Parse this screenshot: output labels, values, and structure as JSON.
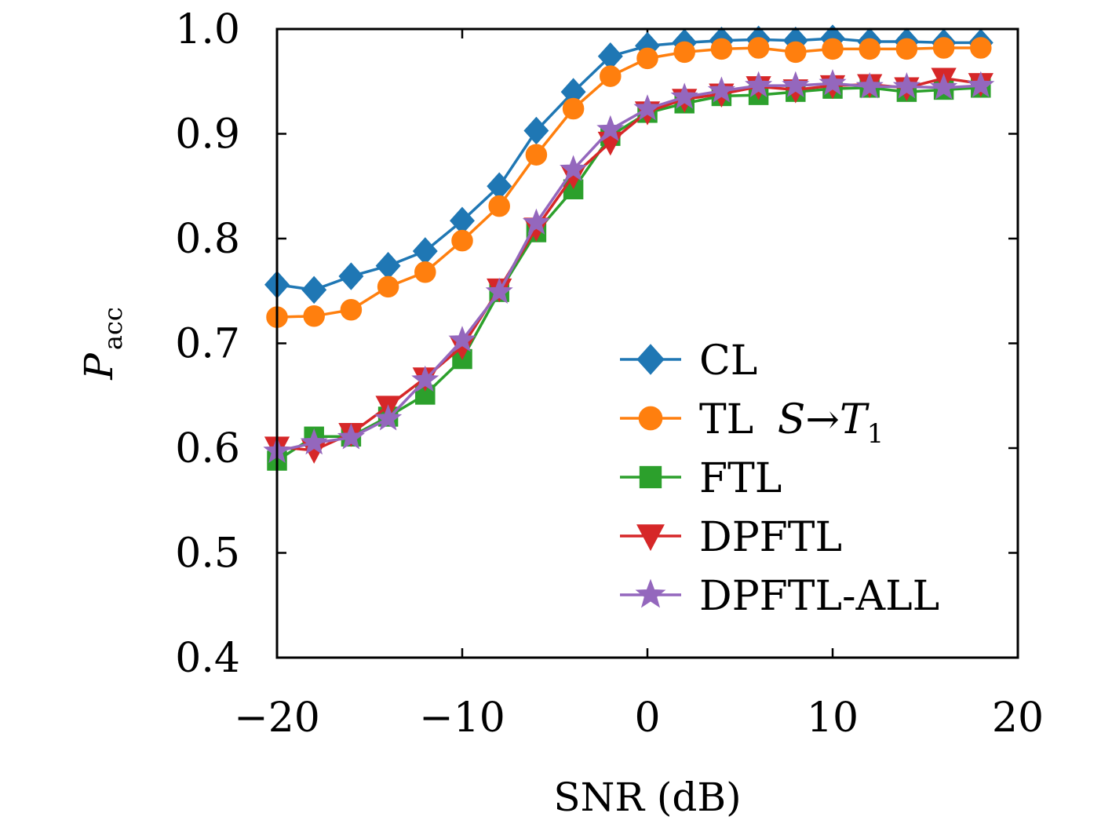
{
  "chart_data": {
    "type": "line",
    "title": "",
    "xlabel": "SNR (dB)",
    "ylabel": {
      "main": "P",
      "sub": "acc"
    },
    "xlim": [
      -20,
      20
    ],
    "ylim": [
      0.4,
      1.0
    ],
    "xticks": [
      -20,
      -10,
      0,
      10,
      20
    ],
    "xtick_labels": [
      "−20",
      "−10",
      "0",
      "10",
      "20"
    ],
    "yticks": [
      0.4,
      0.5,
      0.6,
      0.7,
      0.8,
      0.9,
      1.0
    ],
    "ytick_labels": [
      "0.4",
      "0.5",
      "0.6",
      "0.7",
      "0.8",
      "0.9",
      "1.0"
    ],
    "grid": false,
    "legend_position": "lower-right",
    "x": [
      -20,
      -18,
      -16,
      -14,
      -12,
      -10,
      -8,
      -6,
      -4,
      -2,
      0,
      2,
      4,
      6,
      8,
      10,
      12,
      14,
      16,
      18
    ],
    "series": [
      {
        "name": "CL",
        "color": "#1f77b4",
        "marker": "diamond",
        "values": [
          0.756,
          0.751,
          0.764,
          0.774,
          0.788,
          0.817,
          0.85,
          0.903,
          0.94,
          0.974,
          0.984,
          0.987,
          0.989,
          0.99,
          0.989,
          0.991,
          0.988,
          0.988,
          0.987,
          0.987
        ]
      },
      {
        "name": "TL S→T1",
        "label_parts": {
          "prefix": "TL ",
          "S": "S",
          "arrow": "→",
          "T": "T",
          "sub": "1"
        },
        "color": "#ff7f0e",
        "marker": "circle",
        "values": [
          0.725,
          0.726,
          0.732,
          0.754,
          0.768,
          0.798,
          0.831,
          0.88,
          0.924,
          0.955,
          0.972,
          0.978,
          0.981,
          0.982,
          0.978,
          0.981,
          0.981,
          0.981,
          0.982,
          0.982
        ]
      },
      {
        "name": "FTL",
        "color": "#2ca02c",
        "marker": "square",
        "values": [
          0.588,
          0.611,
          0.611,
          0.63,
          0.651,
          0.685,
          0.749,
          0.806,
          0.847,
          0.898,
          0.92,
          0.929,
          0.936,
          0.937,
          0.94,
          0.943,
          0.944,
          0.94,
          0.942,
          0.944
        ]
      },
      {
        "name": "DPFTL",
        "color": "#d62728",
        "marker": "triangle-down",
        "values": [
          0.601,
          0.598,
          0.614,
          0.64,
          0.667,
          0.697,
          0.752,
          0.81,
          0.86,
          0.892,
          0.921,
          0.933,
          0.938,
          0.945,
          0.942,
          0.946,
          0.947,
          0.944,
          0.953,
          0.948
        ]
      },
      {
        "name": "DPFTL-ALL",
        "color": "#9467bd",
        "marker": "star",
        "values": [
          0.597,
          0.605,
          0.61,
          0.628,
          0.665,
          0.703,
          0.749,
          0.815,
          0.866,
          0.904,
          0.924,
          0.935,
          0.941,
          0.946,
          0.946,
          0.948,
          0.945,
          0.945,
          0.944,
          0.946
        ]
      }
    ]
  }
}
